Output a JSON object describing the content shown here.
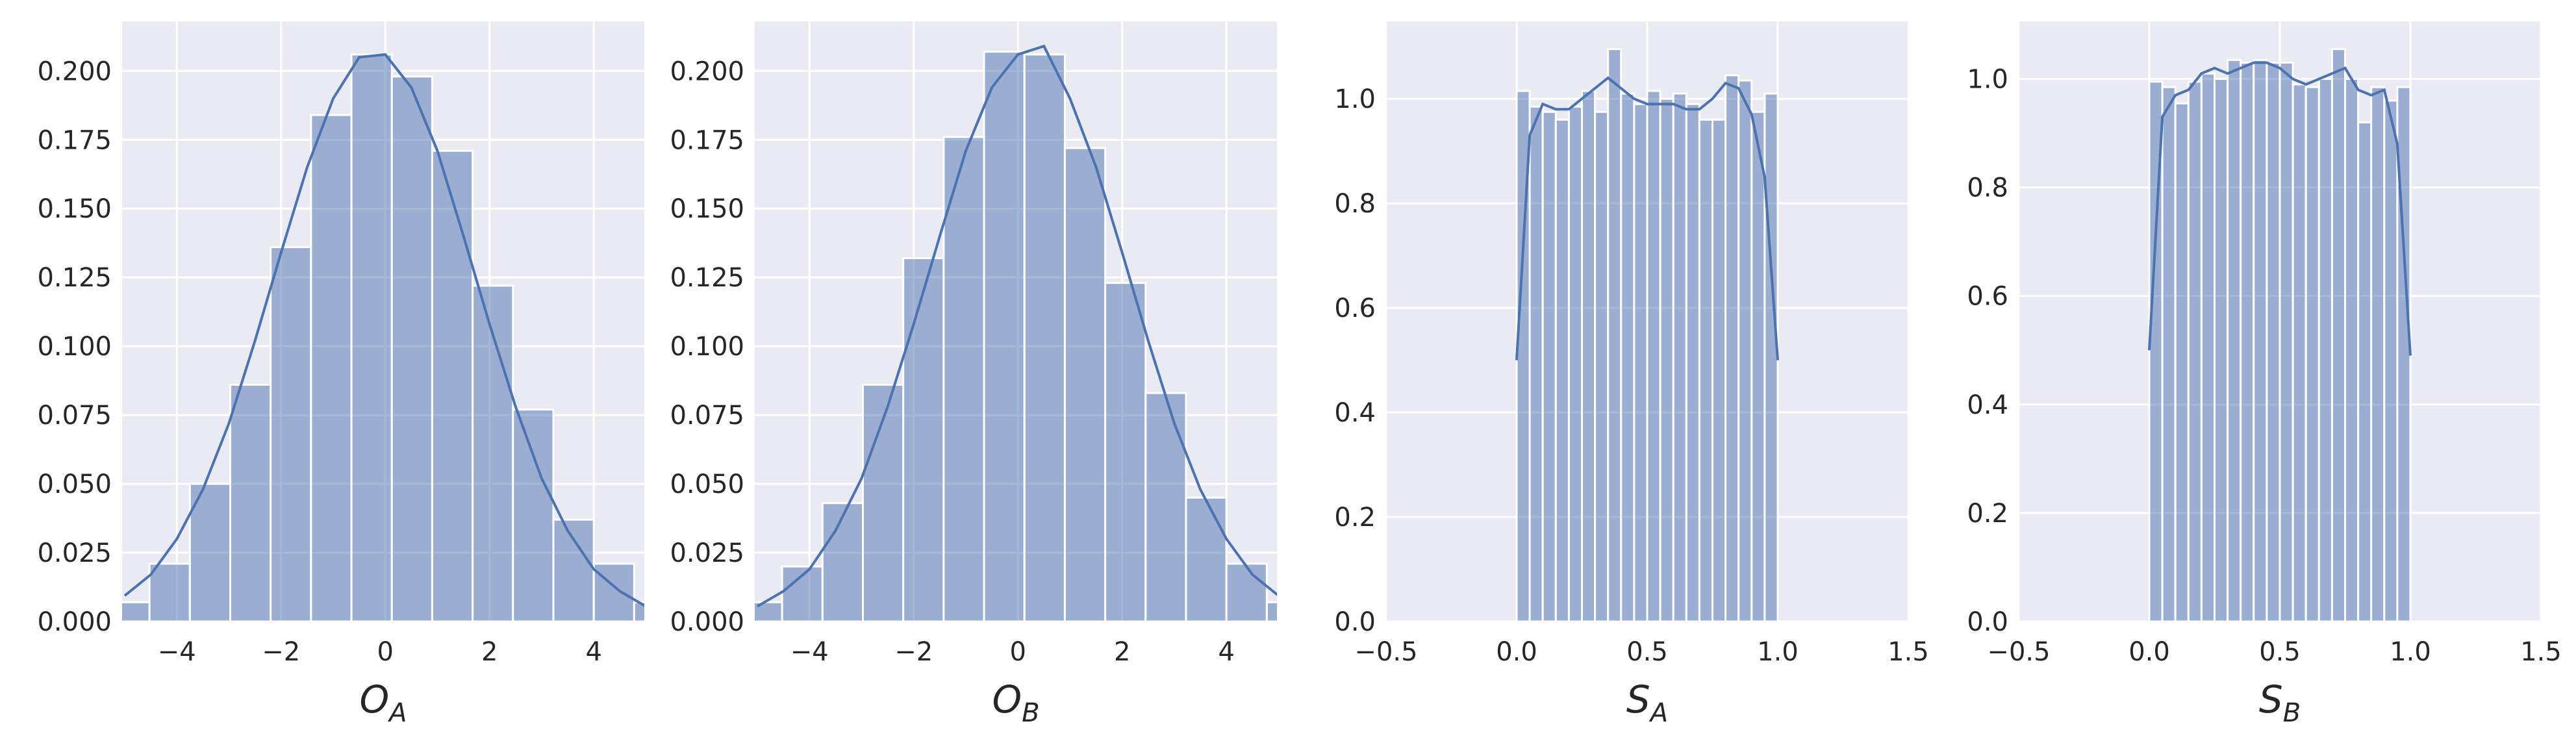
{
  "chart_data": [
    {
      "type": "histogram",
      "xlabel": {
        "text": "O",
        "subscript": "A"
      },
      "grid": true,
      "color": "#4c72b0",
      "bins": [
        -5.3,
        -4.525,
        -3.75,
        -2.975,
        -2.2,
        -1.425,
        -0.65,
        0.125,
        0.9,
        1.675,
        2.45,
        3.225,
        4.0,
        4.775,
        5.55
      ],
      "values": [
        0.007,
        0.021,
        0.05,
        0.086,
        0.136,
        0.184,
        0.206,
        0.198,
        0.171,
        0.122,
        0.077,
        0.037,
        0.021,
        0.007
      ],
      "kde": {
        "x": [
          -5,
          -4.5,
          -4,
          -3.5,
          -3,
          -2.5,
          -2,
          -1.5,
          -1,
          -0.5,
          0,
          0.5,
          1,
          1.5,
          2,
          2.5,
          3,
          3.5,
          4,
          4.5,
          5
        ],
        "y": [
          0.0094,
          0.017,
          0.03,
          0.048,
          0.072,
          0.102,
          0.134,
          0.165,
          0.19,
          0.205,
          0.206,
          0.194,
          0.171,
          0.14,
          0.108,
          0.078,
          0.052,
          0.033,
          0.019,
          0.011,
          0.0055
        ]
      },
      "xlim": [
        -5.05,
        4.97
      ],
      "ylim": [
        0,
        0.218
      ],
      "xticks": [
        {
          "value": -4,
          "label": "−4"
        },
        {
          "value": -2,
          "label": "−2"
        },
        0,
        2,
        4
      ],
      "yticks": [
        {
          "value": 0,
          "label": "0.000"
        },
        {
          "value": 0.025,
          "label": "0.025"
        },
        {
          "value": 0.05,
          "label": "0.050"
        },
        {
          "value": 0.075,
          "label": "0.075"
        },
        {
          "value": 0.1,
          "label": "0.100"
        },
        {
          "value": 0.125,
          "label": "0.125"
        },
        {
          "value": 0.15,
          "label": "0.150"
        },
        {
          "value": 0.175,
          "label": "0.175"
        },
        {
          "value": 0.2,
          "label": "0.200"
        }
      ]
    },
    {
      "type": "histogram",
      "xlabel": {
        "text": "O",
        "subscript": "B"
      },
      "grid": true,
      "color": "#4c72b0",
      "bins": [
        -5.3,
        -4.525,
        -3.75,
        -2.975,
        -2.2,
        -1.425,
        -0.65,
        0.125,
        0.9,
        1.675,
        2.45,
        3.225,
        4.0,
        4.775,
        5.55
      ],
      "values": [
        0.007,
        0.02,
        0.043,
        0.086,
        0.132,
        0.176,
        0.207,
        0.206,
        0.172,
        0.123,
        0.083,
        0.045,
        0.021,
        0.007
      ],
      "kde": {
        "x": [
          -5,
          -4.5,
          -4,
          -3.5,
          -3,
          -2.5,
          -2,
          -1.5,
          -1,
          -0.5,
          0,
          0.5,
          1,
          1.5,
          2,
          2.5,
          3,
          3.5,
          4,
          4.5,
          5
        ],
        "y": [
          0.0055,
          0.011,
          0.019,
          0.033,
          0.052,
          0.078,
          0.108,
          0.14,
          0.171,
          0.194,
          0.206,
          0.209,
          0.19,
          0.165,
          0.134,
          0.102,
          0.072,
          0.048,
          0.03,
          0.017,
          0.0094
        ]
      },
      "xlim": [
        -5.05,
        4.97
      ],
      "ylim": [
        0,
        0.218
      ],
      "xticks": [
        {
          "value": -4,
          "label": "−4"
        },
        {
          "value": -2,
          "label": "−2"
        },
        0,
        2,
        4
      ],
      "yticks": [
        {
          "value": 0,
          "label": "0.000"
        },
        {
          "value": 0.025,
          "label": "0.025"
        },
        {
          "value": 0.05,
          "label": "0.050"
        },
        {
          "value": 0.075,
          "label": "0.075"
        },
        {
          "value": 0.1,
          "label": "0.100"
        },
        {
          "value": 0.125,
          "label": "0.125"
        },
        {
          "value": 0.15,
          "label": "0.150"
        },
        {
          "value": 0.175,
          "label": "0.175"
        },
        {
          "value": 0.2,
          "label": "0.200"
        }
      ]
    },
    {
      "type": "histogram",
      "xlabel": {
        "text": "S",
        "subscript": "A"
      },
      "grid": true,
      "color": "#4c72b0",
      "bins": [
        0,
        0.05,
        0.1,
        0.15,
        0.2,
        0.25,
        0.3,
        0.35,
        0.4,
        0.45,
        0.5,
        0.55,
        0.6,
        0.65,
        0.7,
        0.75,
        0.8,
        0.85,
        0.9,
        0.95,
        1.0
      ],
      "values": [
        1.015,
        0.985,
        0.975,
        0.96,
        0.985,
        1.015,
        0.975,
        1.095,
        1.01,
        0.99,
        1.015,
        1.0,
        1.01,
        0.99,
        0.96,
        0.96,
        1.045,
        1.035,
        0.975,
        1.01
      ],
      "kde": {
        "x": [
          0,
          0.05,
          0.1,
          0.15,
          0.2,
          0.25,
          0.3,
          0.35,
          0.4,
          0.45,
          0.5,
          0.55,
          0.6,
          0.65,
          0.7,
          0.75,
          0.8,
          0.85,
          0.9,
          0.95,
          1.0
        ],
        "y": [
          0.5,
          0.93,
          0.99,
          0.98,
          0.98,
          1.0,
          1.02,
          1.04,
          1.02,
          1.0,
          0.99,
          0.99,
          0.99,
          0.98,
          0.98,
          1.0,
          1.03,
          1.02,
          0.97,
          0.85,
          0.5
        ]
      },
      "xlim": [
        -0.5,
        1.5
      ],
      "ylim": [
        0,
        1.148
      ],
      "xticks": [
        {
          "value": -0.5,
          "label": "−0.5"
        },
        {
          "value": 0,
          "label": "0.0"
        },
        0.5,
        {
          "value": 1,
          "label": "1.0"
        },
        1.5
      ],
      "yticks": [
        {
          "value": 0,
          "label": "0.0"
        },
        0.2,
        0.4,
        0.6,
        0.8,
        {
          "value": 1,
          "label": "1.0"
        }
      ]
    },
    {
      "type": "histogram",
      "xlabel": {
        "text": "S",
        "subscript": "B"
      },
      "grid": true,
      "color": "#4c72b0",
      "bins": [
        0,
        0.05,
        0.1,
        0.15,
        0.2,
        0.25,
        0.3,
        0.35,
        0.4,
        0.45,
        0.5,
        0.55,
        0.6,
        0.65,
        0.7,
        0.75,
        0.8,
        0.85,
        0.9,
        0.95,
        1.0
      ],
      "values": [
        0.995,
        0.985,
        0.955,
        0.995,
        1.01,
        1.0,
        1.035,
        1.03,
        1.035,
        1.03,
        1.03,
        0.99,
        0.985,
        1.0,
        1.055,
        1.0,
        0.92,
        0.985,
        0.96,
        0.985
      ],
      "kde": {
        "x": [
          0,
          0.05,
          0.1,
          0.15,
          0.2,
          0.25,
          0.3,
          0.35,
          0.4,
          0.45,
          0.5,
          0.55,
          0.6,
          0.65,
          0.7,
          0.75,
          0.8,
          0.85,
          0.9,
          0.95,
          1.0
        ],
        "y": [
          0.5,
          0.93,
          0.97,
          0.98,
          1.01,
          1.02,
          1.01,
          1.02,
          1.03,
          1.03,
          1.02,
          1.0,
          0.99,
          1.0,
          1.01,
          1.02,
          0.98,
          0.97,
          0.98,
          0.88,
          0.49
        ]
      },
      "xlim": [
        -0.5,
        1.5
      ],
      "ylim": [
        0,
        1.106
      ],
      "xticks": [
        {
          "value": -0.5,
          "label": "−0.5"
        },
        {
          "value": 0,
          "label": "0.0"
        },
        0.5,
        {
          "value": 1,
          "label": "1.0"
        },
        1.5
      ],
      "yticks": [
        {
          "value": 0,
          "label": "0.0"
        },
        0.2,
        0.4,
        0.6,
        0.8,
        {
          "value": 1,
          "label": "1.0"
        }
      ]
    }
  ]
}
